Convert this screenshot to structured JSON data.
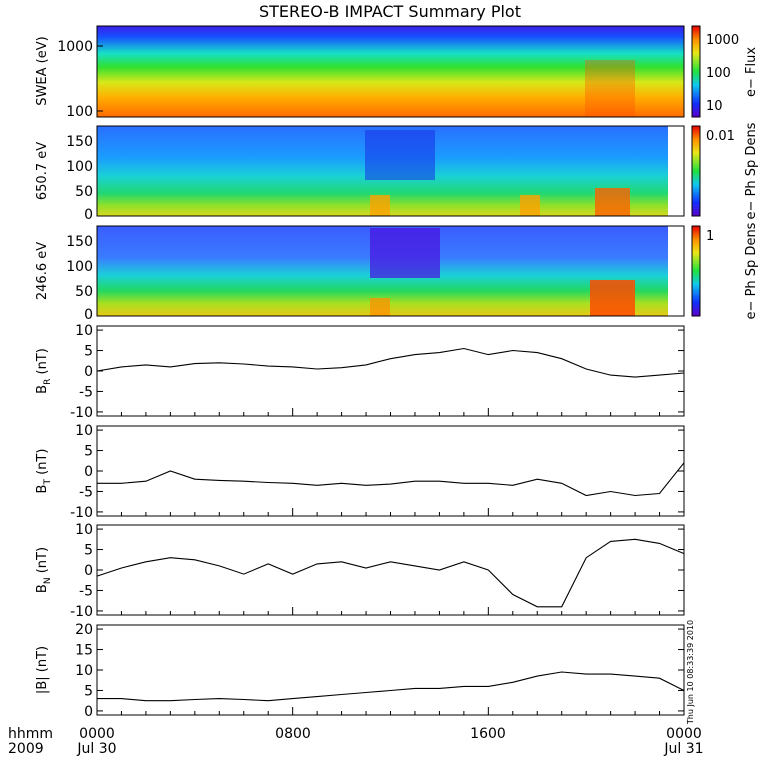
{
  "title": "STEREO-B IMPACT Summary Plot",
  "footer": {
    "row1_label": "hhmm",
    "row2_label": "2009",
    "x_ticks": [
      "0000",
      "0800",
      "1600",
      "0000"
    ],
    "date_ticks": [
      "Jul 30",
      "Jul 31"
    ],
    "timestamp": "Thu Jun 10 08:33:39 2010"
  },
  "chart_data": [
    {
      "type": "heatmap",
      "panel": "swea",
      "ylabel": "SWEA (eV)",
      "yscale": "log",
      "ylim": [
        100,
        1800
      ],
      "yticks": [
        "1000",
        "100"
      ],
      "colorbar_label": "e− Flux",
      "colorbar_ticks": [
        "1000",
        "100",
        "10"
      ],
      "description_rows": [
        {
          "energy": 1500,
          "level": 0.08
        },
        {
          "energy": 900,
          "level": 0.3
        },
        {
          "energy": 500,
          "level": 0.5
        },
        {
          "energy": 250,
          "level": 0.68
        },
        {
          "energy": 120,
          "level": 0.88
        }
      ]
    },
    {
      "type": "heatmap",
      "panel": "pad650",
      "ylabel": "650.7 eV",
      "ylim": [
        0,
        180
      ],
      "yticks": [
        "150",
        "100",
        "50",
        "0"
      ],
      "colorbar_label": "e− Ph Sp Dens",
      "colorbar_ticks": [
        "0.01"
      ]
    },
    {
      "type": "heatmap",
      "panel": "pad246",
      "ylabel": "246.6 eV",
      "ylim": [
        0,
        180
      ],
      "yticks": [
        "150",
        "100",
        "50",
        "0"
      ],
      "colorbar_label": "e− Ph Sp Dens",
      "colorbar_ticks": [
        "1"
      ]
    },
    {
      "type": "line",
      "panel": "br",
      "ylabel": "B",
      "ylabel_sub": "R",
      "ylabel_unit": " (nT)",
      "ylim": [
        -11,
        11
      ],
      "yticks": [
        10,
        5,
        0,
        -5,
        -10
      ],
      "x": [
        0,
        1,
        2,
        3,
        4,
        5,
        6,
        7,
        8,
        9,
        10,
        11,
        12,
        13,
        14,
        15,
        16,
        17,
        18,
        19,
        20,
        21,
        22,
        23,
        24
      ],
      "values": [
        0.0,
        1.0,
        1.5,
        1.0,
        1.8,
        2.0,
        1.7,
        1.2,
        1.0,
        0.5,
        0.8,
        1.5,
        3.0,
        4.0,
        4.5,
        5.5,
        4.0,
        5.0,
        4.5,
        3.0,
        0.5,
        -1.0,
        -1.5,
        -1.0,
        -0.5
      ]
    },
    {
      "type": "line",
      "panel": "bt",
      "ylabel": "B",
      "ylabel_sub": "T",
      "ylabel_unit": " (nT)",
      "ylim": [
        -11,
        11
      ],
      "yticks": [
        10,
        5,
        0,
        -5,
        -10
      ],
      "x": [
        0,
        1,
        2,
        3,
        4,
        5,
        6,
        7,
        8,
        9,
        10,
        11,
        12,
        13,
        14,
        15,
        16,
        17,
        18,
        19,
        20,
        21,
        22,
        23,
        24
      ],
      "values": [
        -3.0,
        -3.0,
        -2.5,
        0.0,
        -2.0,
        -2.3,
        -2.5,
        -2.8,
        -3.0,
        -3.5,
        -3.0,
        -3.5,
        -3.2,
        -2.5,
        -2.5,
        -3.0,
        -3.0,
        -3.5,
        -2.0,
        -3.0,
        -6.0,
        -5.0,
        -6.0,
        -5.5,
        2.0
      ]
    },
    {
      "type": "line",
      "panel": "bn",
      "ylabel": "B",
      "ylabel_sub": "N",
      "ylabel_unit": " (nT)",
      "ylim": [
        -11,
        11
      ],
      "yticks": [
        10,
        5,
        0,
        -5,
        -10
      ],
      "x": [
        0,
        1,
        2,
        3,
        4,
        5,
        6,
        7,
        8,
        9,
        10,
        11,
        12,
        13,
        14,
        15,
        16,
        17,
        18,
        19,
        20,
        21,
        22,
        23,
        24
      ],
      "values": [
        -1.5,
        0.5,
        2.0,
        3.0,
        2.5,
        1.0,
        -1.0,
        1.5,
        -1.0,
        1.5,
        2.0,
        0.5,
        2.0,
        1.0,
        0.0,
        2.0,
        0.0,
        -6.0,
        -9.0,
        -9.0,
        3.0,
        7.0,
        7.5,
        6.5,
        4.0
      ]
    },
    {
      "type": "line",
      "panel": "bmag",
      "ylabel": "|B| (nT)",
      "ylim": [
        -1,
        21
      ],
      "yticks": [
        20,
        15,
        10,
        5,
        0
      ],
      "x": [
        0,
        1,
        2,
        3,
        4,
        5,
        6,
        7,
        8,
        9,
        10,
        11,
        12,
        13,
        14,
        15,
        16,
        17,
        18,
        19,
        20,
        21,
        22,
        23,
        24
      ],
      "values": [
        3.0,
        3.0,
        2.5,
        2.5,
        2.8,
        3.0,
        2.8,
        2.5,
        3.0,
        3.5,
        4.0,
        4.5,
        5.0,
        5.5,
        5.5,
        6.0,
        6.0,
        7.0,
        8.5,
        9.5,
        9.0,
        9.0,
        8.5,
        8.0,
        5.0
      ]
    }
  ]
}
